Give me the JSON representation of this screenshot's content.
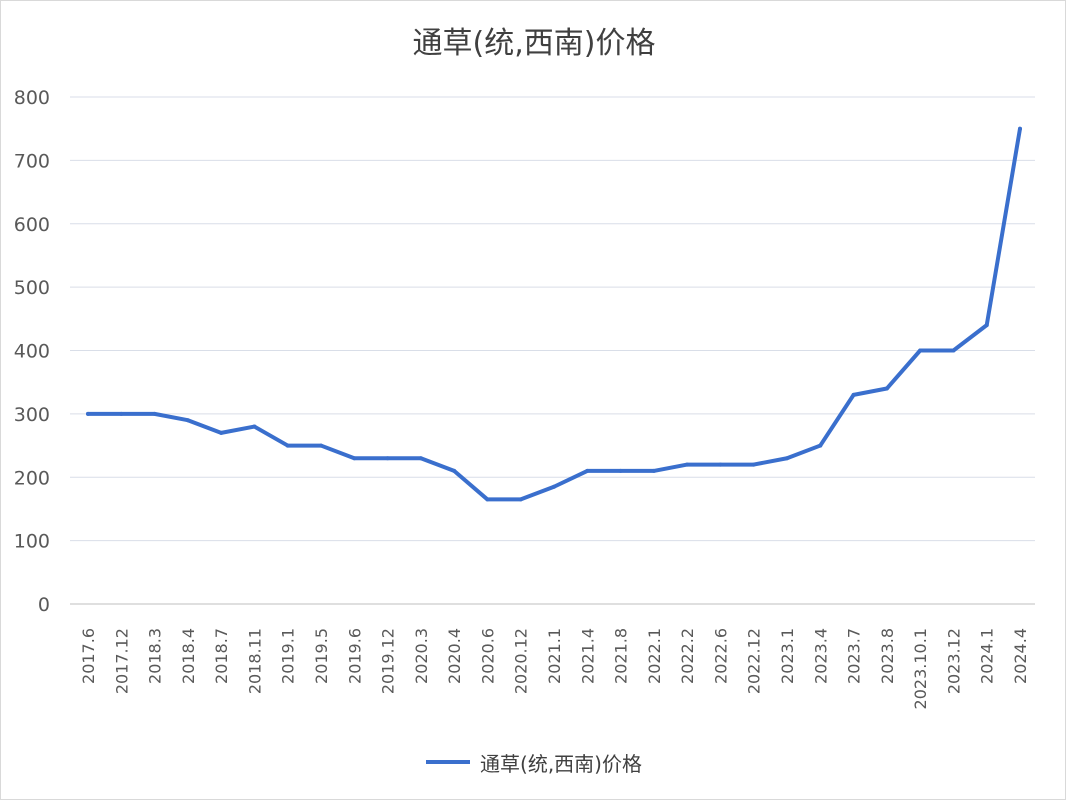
{
  "chart_data": {
    "type": "line",
    "title": "通草(统,西南)价格",
    "xlabel": "",
    "ylabel": "",
    "ylim": [
      0,
      800
    ],
    "yticks": [
      "0",
      "100",
      "200",
      "300",
      "400",
      "500",
      "600",
      "700",
      "800"
    ],
    "grid": true,
    "legend_position": "bottom",
    "categories": [
      "2017.6",
      "2017.12",
      "2018.3",
      "2018.4",
      "2018.7",
      "2018.11",
      "2019.1",
      "2019.5",
      "2019.6",
      "2019.12",
      "2020.3",
      "2020.4",
      "2020.6",
      "2020.12",
      "2021.1",
      "2021.4",
      "2021.8",
      "2022.1",
      "2022.2",
      "2022.6",
      "2022.12",
      "2023.1",
      "2023.4",
      "2023.7",
      "2023.8",
      "2023.10.1",
      "2023.12",
      "2024.1",
      "2024.4"
    ],
    "series": [
      {
        "name": "通草(统,西南)价格",
        "color": "#3a6fcd",
        "values": [
          300,
          300,
          300,
          290,
          270,
          280,
          250,
          250,
          230,
          230,
          230,
          210,
          165,
          165,
          185,
          210,
          210,
          210,
          220,
          220,
          220,
          230,
          250,
          330,
          340,
          400,
          400,
          440,
          750
        ]
      }
    ]
  }
}
